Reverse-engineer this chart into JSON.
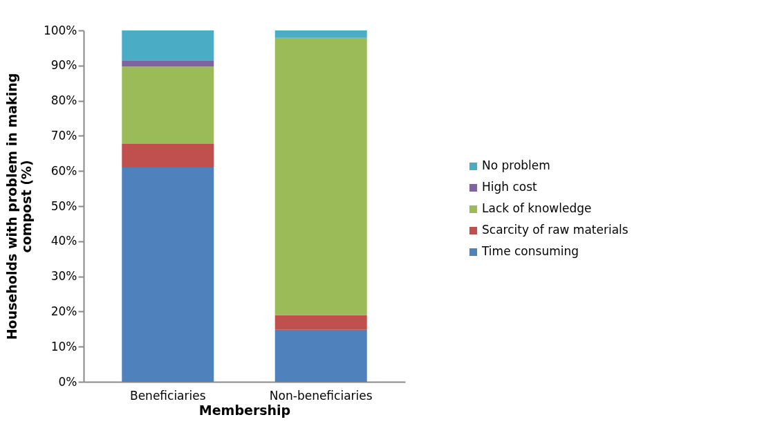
{
  "chart_data": {
    "type": "bar",
    "stacked": true,
    "xlabel": "Membership",
    "ylabel": "Households with problem in making compost (%)",
    "categories": [
      "Beneficiaries",
      "Non-beneficiaries"
    ],
    "series": [
      {
        "name": "Time consuming",
        "color": "#4f81bd",
        "values": [
          61,
          14.8
        ]
      },
      {
        "name": "Scarcity of raw materials",
        "color": "#c0504d",
        "values": [
          6.7,
          4.2
        ]
      },
      {
        "name": "Lack of knowledge",
        "color": "#9bbb59",
        "values": [
          22,
          78.9
        ]
      },
      {
        "name": "High cost",
        "color": "#8064a2",
        "values": [
          1.8,
          0
        ]
      },
      {
        "name": "No problem",
        "color": "#4bacc6",
        "values": [
          8.5,
          2.1
        ]
      }
    ],
    "ylim": [
      0,
      100
    ],
    "yticks": [
      {
        "value": 0,
        "label": "0%"
      },
      {
        "value": 10,
        "label": "10%"
      },
      {
        "value": 20,
        "label": "20%"
      },
      {
        "value": 30,
        "label": "30%"
      },
      {
        "value": 40,
        "label": "40%"
      },
      {
        "value": 50,
        "label": "50%"
      },
      {
        "value": 60,
        "label": "60%"
      },
      {
        "value": 70,
        "label": "70%"
      },
      {
        "value": 80,
        "label": "80%"
      },
      {
        "value": 90,
        "label": "90%"
      },
      {
        "value": 100,
        "label": "100%"
      }
    ],
    "grid": false,
    "legend": "right"
  }
}
